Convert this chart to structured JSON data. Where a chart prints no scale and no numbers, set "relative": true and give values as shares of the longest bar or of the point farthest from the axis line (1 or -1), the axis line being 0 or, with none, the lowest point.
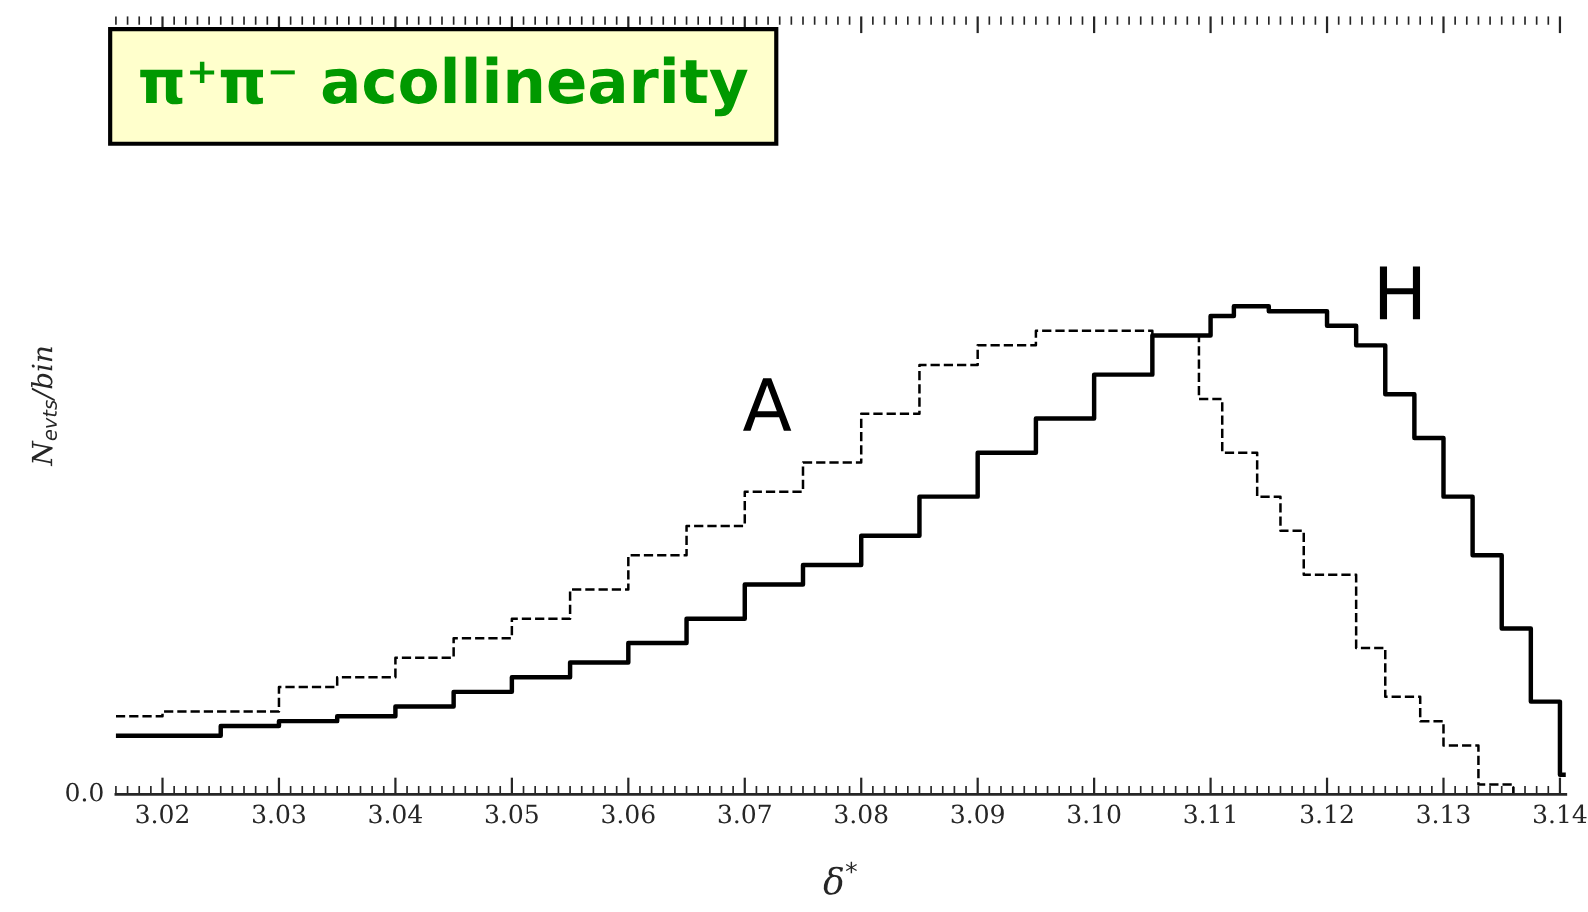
{
  "chart_data": {
    "type": "step",
    "relative": true,
    "title": "π⁺π⁻ acollinearity",
    "xlabel": "δ$^{*}$",
    "ylabel": "N$_{evts}$/bin",
    "xlim": [
      3.016,
      3.1405
    ],
    "xticks": [
      3.02,
      3.03,
      3.04,
      3.05,
      3.06,
      3.07,
      3.08,
      3.09,
      {
        "value": 3.1,
        "label": "3.10"
      },
      3.11,
      3.12,
      3.13,
      3.14
    ],
    "grid": false,
    "legend": false,
    "annotations": [
      "0.0"
    ],
    "series": [
      {
        "name": "A",
        "color": "#000000",
        "line_style": "dashed",
        "x": [
          3.016,
          3.02,
          3.03,
          3.035,
          3.04,
          3.045,
          3.05,
          3.055,
          3.06,
          3.065,
          3.07,
          3.075,
          3.08,
          3.085,
          3.09,
          3.095,
          3.1,
          3.105,
          3.109,
          3.111,
          3.114,
          3.116,
          3.118,
          3.1225,
          3.125,
          3.128,
          3.13,
          3.133,
          3.136
        ],
        "values": [
          0.16,
          0.17,
          0.22,
          0.24,
          0.28,
          0.32,
          0.36,
          0.42,
          0.49,
          0.55,
          0.62,
          0.68,
          0.78,
          0.88,
          0.92,
          0.95,
          0.95,
          0.94,
          0.81,
          0.7,
          0.61,
          0.54,
          0.45,
          0.3,
          0.2,
          0.15,
          0.1,
          0.02,
          0
        ]
      },
      {
        "name": "H",
        "color": "#000000",
        "line_style": "solid",
        "x": [
          3.016,
          3.02,
          3.025,
          3.03,
          3.035,
          3.04,
          3.045,
          3.05,
          3.055,
          3.06,
          3.065,
          3.07,
          3.075,
          3.08,
          3.085,
          3.09,
          3.095,
          3.1,
          3.105,
          3.11,
          3.112,
          3.115,
          3.12,
          3.1225,
          3.125,
          3.1275,
          3.13,
          3.1325,
          3.135,
          3.1375,
          3.14,
          3.1405
        ],
        "values": [
          0.12,
          0.12,
          0.14,
          0.15,
          0.16,
          0.18,
          0.21,
          0.24,
          0.27,
          0.31,
          0.36,
          0.43,
          0.47,
          0.53,
          0.61,
          0.7,
          0.77,
          0.86,
          0.94,
          0.98,
          1,
          0.99,
          0.96,
          0.92,
          0.82,
          0.73,
          0.61,
          0.49,
          0.34,
          0.19,
          0.04,
          0.04
        ]
      }
    ]
  }
}
